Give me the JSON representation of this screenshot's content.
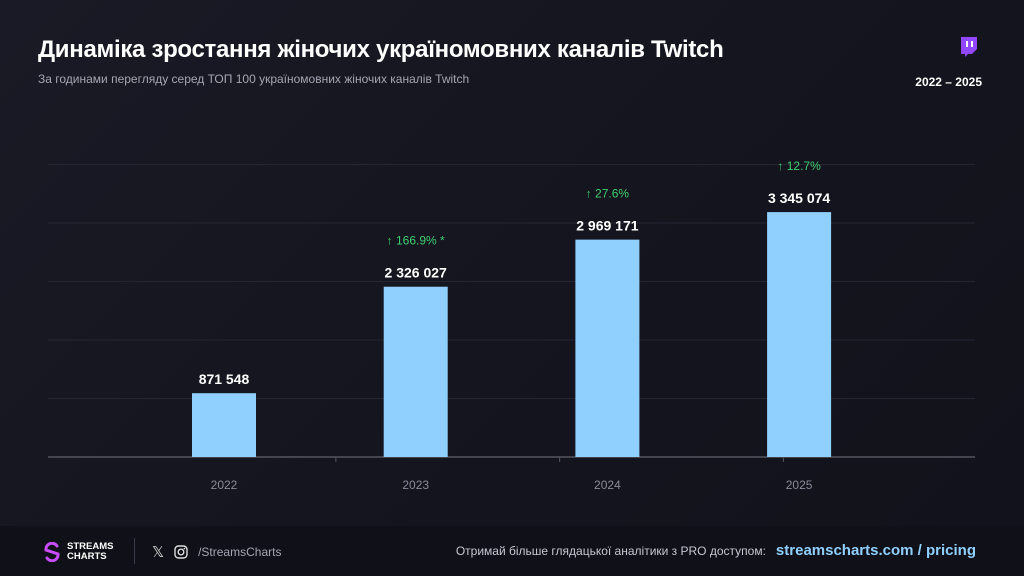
{
  "header": {
    "title": "Динаміка зростання жіночих україномовних каналів Twitch",
    "subtitle": "За годинами перегляду серед ТОП 100 україномовних жіночих каналів Twitch",
    "range": "2022 – 2025",
    "platform_icon": "twitch-icon"
  },
  "chart_data": {
    "type": "bar",
    "categories": [
      "2022",
      "2023",
      "2024",
      "2025"
    ],
    "values": [
      871548,
      2326027,
      2969171,
      3345074
    ],
    "value_labels": [
      "871 548",
      "2 326 027",
      "2 969 171",
      "3 345 074"
    ],
    "growth_labels": [
      "",
      "↑ 166.9% *",
      "↑ 27.6%",
      "↑ 12.7%"
    ],
    "ylim": [
      0,
      4330000
    ],
    "grid": true,
    "colors": {
      "bar": "#8fd0ff",
      "growth": "#3ecf6e",
      "label": "#ffffff",
      "tick": "#8a8a99"
    }
  },
  "footer": {
    "logo_line1": "STREAMS",
    "logo_line2": "CHARTS",
    "social_handle": "/StreamsCharts",
    "promo_text": "Отримай більше глядацької аналітики з PRO доступом:",
    "promo_link": "streamscharts.com / pricing"
  }
}
